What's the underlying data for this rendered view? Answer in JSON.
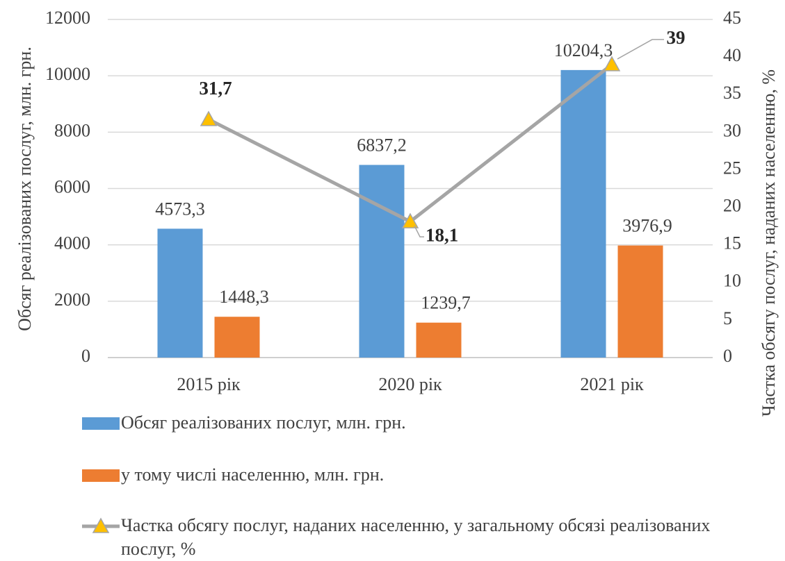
{
  "chart_data": {
    "type": "bar_line",
    "categories": [
      "2015 рік",
      "2020 рік",
      "2021 рік"
    ],
    "y_label": "Обсяг реалізованих послуг, млн. грн.",
    "y2_label": "Частка обсягу послуг, наданих населенню, %",
    "ylim": [
      0,
      12000
    ],
    "yticks": [
      0,
      2000,
      4000,
      6000,
      8000,
      10000,
      12000
    ],
    "y2lim": [
      0,
      45
    ],
    "y2ticks": [
      0,
      5,
      10,
      15,
      20,
      25,
      30,
      35,
      40,
      45
    ],
    "grid": true,
    "legend": "bottom",
    "series": [
      {
        "name": "Обсяг реалізованих послуг, млн. грн.",
        "type": "bar",
        "color": "#5b9bd5",
        "values": [
          4573.3,
          6837.2,
          10204.3
        ],
        "value_labels": [
          "4573,3",
          "6837,2",
          "10204,3"
        ]
      },
      {
        "name": "у тому числі населенню, млн. грн.",
        "type": "bar",
        "color": "#ed7d31",
        "values": [
          1448.3,
          1239.7,
          3976.9
        ],
        "value_labels": [
          "1448,3",
          "1239,7",
          "3976,9"
        ]
      },
      {
        "name": "Частка обсягу послуг, наданих населенню, у загальному обсязі реалізованих послуг, %",
        "type": "line",
        "axis": "y2",
        "color": "#a5a5a5",
        "marker_color": "#ffc000",
        "values": [
          31.7,
          18.1,
          39
        ],
        "value_labels": [
          "31,7",
          "18,1",
          "39"
        ]
      }
    ]
  }
}
